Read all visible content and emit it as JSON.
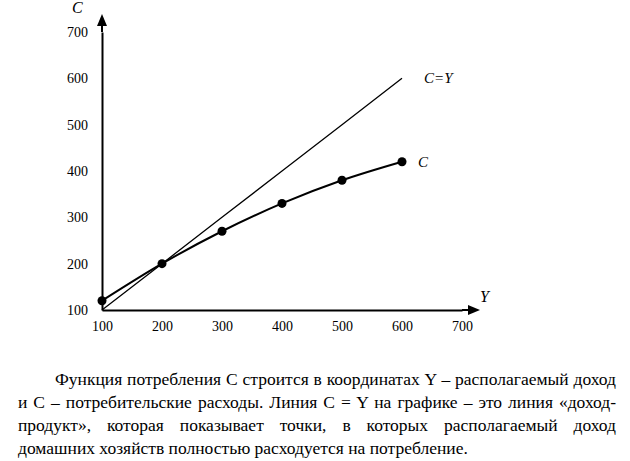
{
  "chart_data": {
    "type": "line",
    "x_label": "Y",
    "y_label": "C",
    "x": [
      100,
      200,
      300,
      400,
      500,
      600
    ],
    "series": [
      {
        "name": "C=Y",
        "color": "#000000",
        "values": [
          100,
          200,
          300,
          400,
          500,
          600
        ],
        "marker": "none",
        "line_style": "solid"
      },
      {
        "name": "C",
        "color": "#000000",
        "values": [
          120,
          200,
          270,
          330,
          380,
          420
        ],
        "marker": "circle",
        "line_style": "solid"
      }
    ],
    "xlim": [
      100,
      700
    ],
    "ylim": [
      100,
      700
    ],
    "xticks": [
      100,
      200,
      300,
      400,
      500,
      600,
      700
    ],
    "yticks": [
      100,
      200,
      300,
      400,
      500,
      600,
      700
    ],
    "grid": false,
    "caption": "Функция потребления C строится в координатах Y – располагаемый доход и C – потребительские расходы. Линия C = Y на графике – это линия «доход-продукт», которая показывает точки, в которых располагаемый доход домашних хозяйств полностью расходуется на потребление."
  }
}
